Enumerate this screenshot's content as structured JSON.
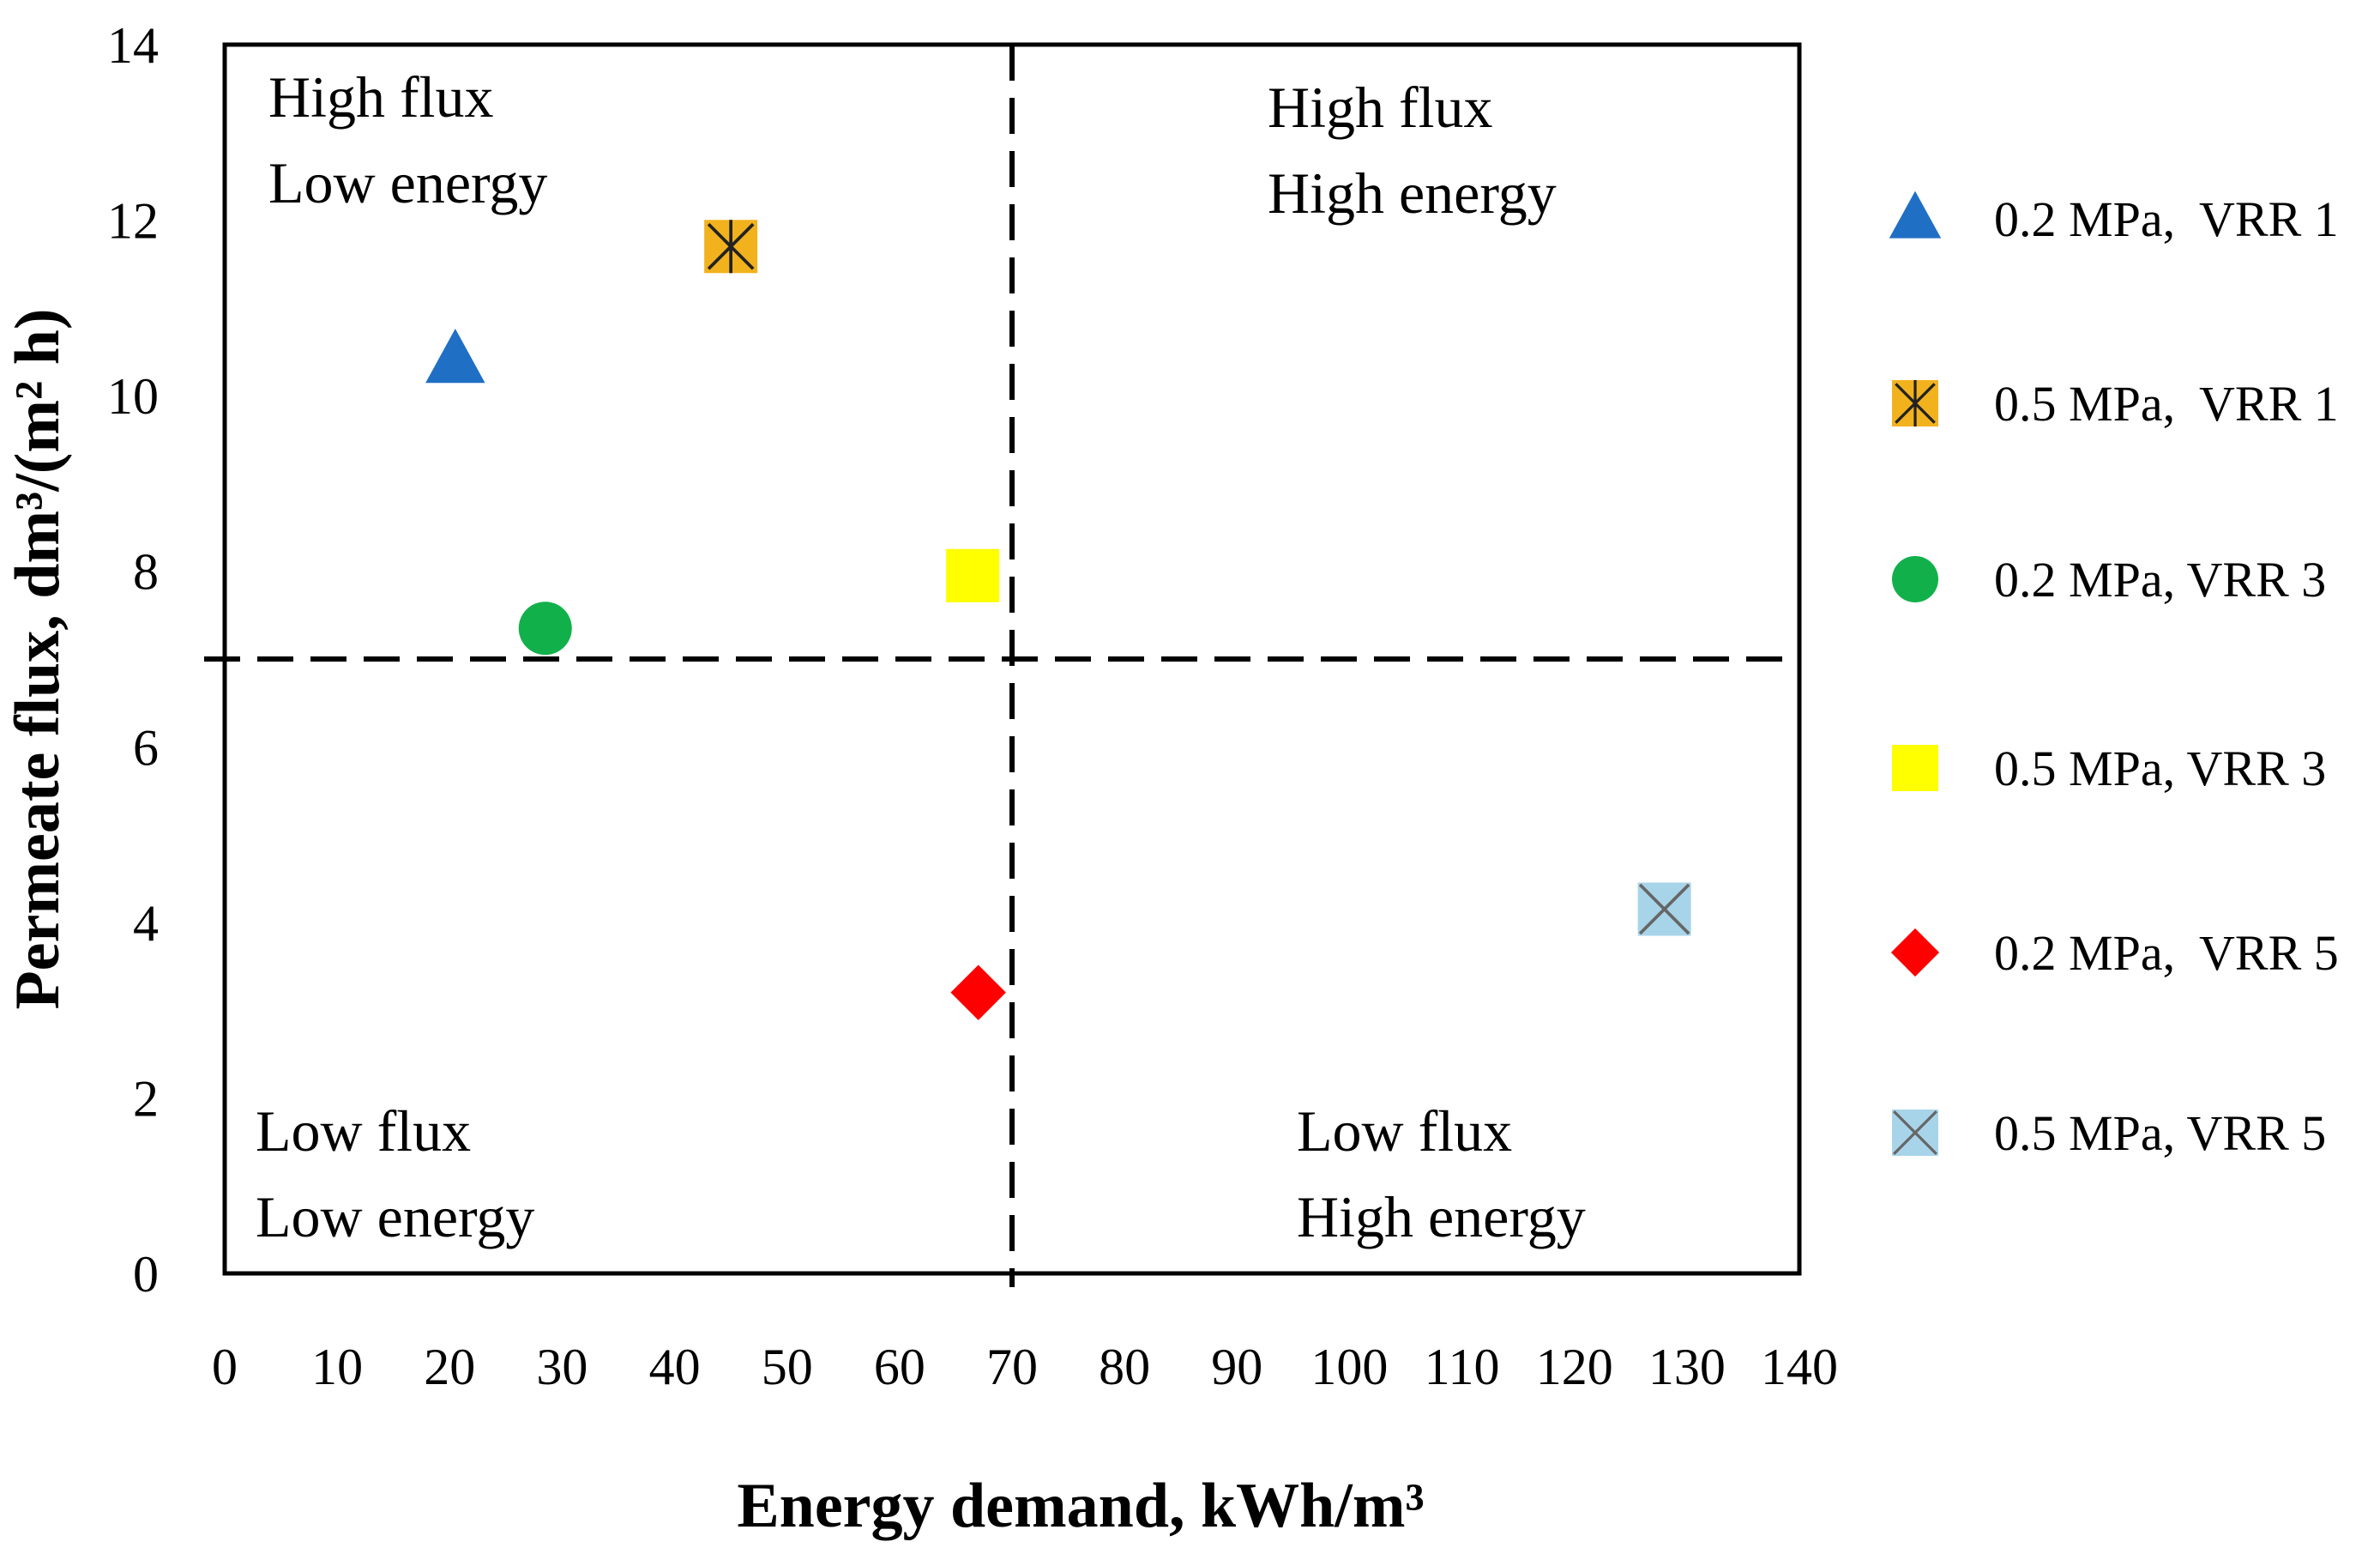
{
  "chart_data": {
    "type": "scatter",
    "xlabel": "Energy demand, kWh/m³",
    "ylabel": "Permeate flux, dm³/(m² h)",
    "xlim": [
      0,
      140
    ],
    "ylim": [
      0,
      14
    ],
    "x_ticks": [
      0,
      10,
      20,
      30,
      40,
      50,
      60,
      70,
      80,
      90,
      100,
      110,
      120,
      130,
      140
    ],
    "y_ticks": [
      0,
      2,
      4,
      6,
      8,
      10,
      12,
      14
    ],
    "reference_lines": {
      "vertical_x": 70,
      "horizontal_y": 7
    },
    "quadrants": [
      {
        "id": "tl",
        "line1": "High flux",
        "line2": "Low energy"
      },
      {
        "id": "tr",
        "line1": "High flux",
        "line2": "High energy"
      },
      {
        "id": "bl",
        "line1": "Low flux",
        "line2": "Low energy"
      },
      {
        "id": "br",
        "line1": "Low flux",
        "line2": "High energy"
      }
    ],
    "series": [
      {
        "name": "0.2 MPa,  VRR 1",
        "marker": "triangle",
        "color": "#1f6fc4",
        "x": 20.5,
        "y": 10.4
      },
      {
        "name": "0.5 MPa,  VRR 1",
        "marker": "asterisk-square",
        "color": "#f2b21e",
        "x": 45,
        "y": 11.7
      },
      {
        "name": "0.2 MPa, VRR 3",
        "marker": "circle",
        "color": "#12b04a",
        "x": 28.5,
        "y": 7.35
      },
      {
        "name": "0.5 MPa, VRR 3",
        "marker": "square",
        "color": "#ffff00",
        "x": 66.5,
        "y": 7.95
      },
      {
        "name": "0.2 MPa,  VRR 5",
        "marker": "diamond",
        "color": "#ff0000",
        "x": 67,
        "y": 3.2
      },
      {
        "name": "0.5 MPa, VRR 5",
        "marker": "x-square",
        "color": "#a8d4ea",
        "x": 128,
        "y": 4.15
      }
    ],
    "legend_position": "right"
  }
}
